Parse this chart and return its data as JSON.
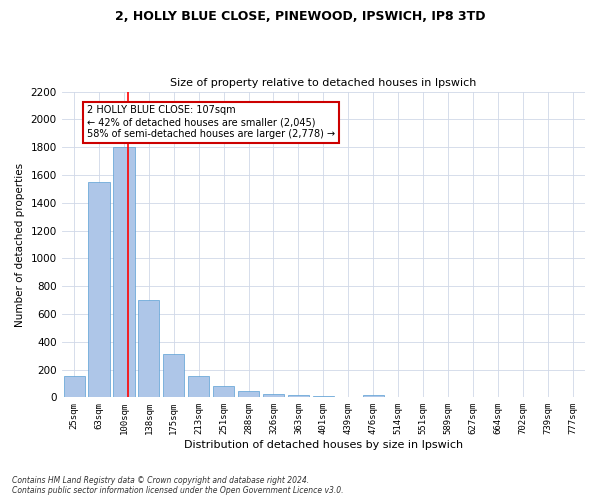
{
  "title1": "2, HOLLY BLUE CLOSE, PINEWOOD, IPSWICH, IP8 3TD",
  "title2": "Size of property relative to detached houses in Ipswich",
  "xlabel": "Distribution of detached houses by size in Ipswich",
  "ylabel": "Number of detached properties",
  "categories": [
    "25sqm",
    "63sqm",
    "100sqm",
    "138sqm",
    "175sqm",
    "213sqm",
    "251sqm",
    "288sqm",
    "326sqm",
    "363sqm",
    "401sqm",
    "439sqm",
    "476sqm",
    "514sqm",
    "551sqm",
    "589sqm",
    "627sqm",
    "664sqm",
    "702sqm",
    "739sqm",
    "777sqm"
  ],
  "values": [
    155,
    1550,
    1800,
    700,
    310,
    155,
    80,
    42,
    25,
    20,
    10,
    5,
    15,
    0,
    0,
    0,
    0,
    0,
    0,
    0,
    0
  ],
  "bar_color": "#aec6e8",
  "bar_edgecolor": "#5a9fd4",
  "redline_x": 2.18,
  "annotation_line1": "2 HOLLY BLUE CLOSE: 107sqm",
  "annotation_line2": "← 42% of detached houses are smaller (2,045)",
  "annotation_line3": "58% of semi-detached houses are larger (2,778) →",
  "ylim": [
    0,
    2200
  ],
  "yticks": [
    0,
    200,
    400,
    600,
    800,
    1000,
    1200,
    1400,
    1600,
    1800,
    2000,
    2200
  ],
  "footnote1": "Contains HM Land Registry data © Crown copyright and database right 2024.",
  "footnote2": "Contains public sector information licensed under the Open Government Licence v3.0.",
  "bg_color": "#ffffff",
  "grid_color": "#d0d8e8",
  "annotation_box_color": "#cc0000"
}
